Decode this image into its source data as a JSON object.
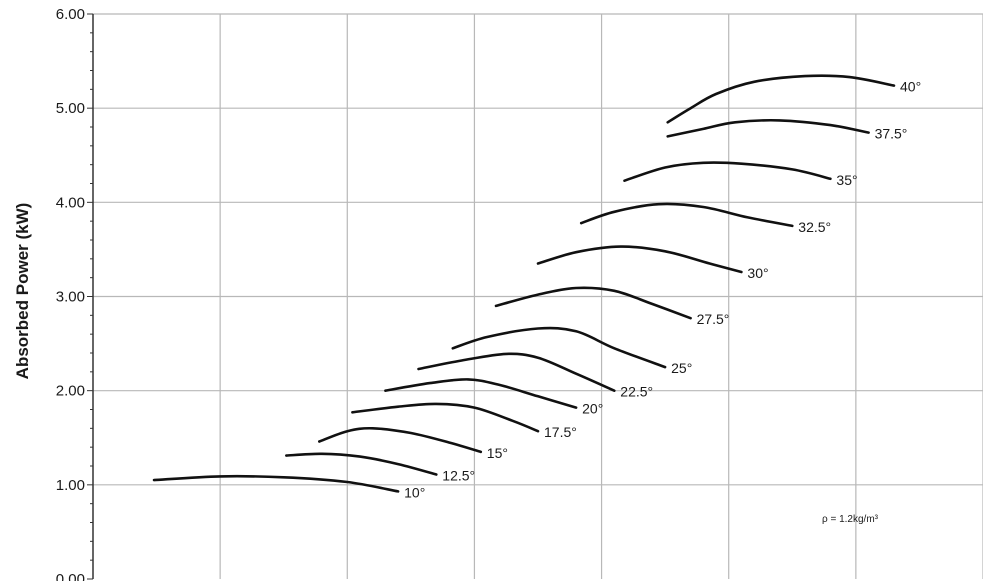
{
  "chart_data": {
    "type": "line",
    "title": "",
    "xlabel": "",
    "ylabel": "Absorbed Power (kW)",
    "ylim": [
      0,
      6
    ],
    "xlim": [
      0,
      7
    ],
    "y_ticks": [
      "0.00",
      "1.00",
      "2.00",
      "3.00",
      "4.00",
      "5.00",
      "6.00"
    ],
    "grid": true,
    "legend": "none",
    "annotation": "ρ = 1.2kg/m³",
    "line_color": "#111111",
    "grid_color": "#b8b8b8",
    "series": [
      {
        "name": "10°",
        "points": [
          [
            0.48,
            1.05
          ],
          [
            1.0,
            1.09
          ],
          [
            1.5,
            1.08
          ],
          [
            2.0,
            1.03
          ],
          [
            2.4,
            0.93
          ]
        ]
      },
      {
        "name": "12.5°",
        "points": [
          [
            1.52,
            1.31
          ],
          [
            1.8,
            1.33
          ],
          [
            2.1,
            1.3
          ],
          [
            2.4,
            1.22
          ],
          [
            2.7,
            1.11
          ]
        ]
      },
      {
        "name": "15°",
        "points": [
          [
            1.78,
            1.46
          ],
          [
            2.0,
            1.57
          ],
          [
            2.2,
            1.6
          ],
          [
            2.5,
            1.55
          ],
          [
            2.8,
            1.45
          ],
          [
            3.05,
            1.35
          ]
        ]
      },
      {
        "name": "17.5°",
        "points": [
          [
            2.04,
            1.77
          ],
          [
            2.4,
            1.83
          ],
          [
            2.7,
            1.86
          ],
          [
            3.0,
            1.82
          ],
          [
            3.3,
            1.68
          ],
          [
            3.5,
            1.57
          ]
        ]
      },
      {
        "name": "20°",
        "points": [
          [
            2.3,
            2.0
          ],
          [
            2.65,
            2.08
          ],
          [
            2.95,
            2.12
          ],
          [
            3.2,
            2.06
          ],
          [
            3.5,
            1.94
          ],
          [
            3.8,
            1.82
          ]
        ]
      },
      {
        "name": "22.5°",
        "points": [
          [
            2.56,
            2.23
          ],
          [
            2.9,
            2.32
          ],
          [
            3.25,
            2.39
          ],
          [
            3.5,
            2.35
          ],
          [
            3.8,
            2.18
          ],
          [
            4.1,
            2.0
          ]
        ]
      },
      {
        "name": "25°",
        "points": [
          [
            2.83,
            2.45
          ],
          [
            3.1,
            2.57
          ],
          [
            3.5,
            2.66
          ],
          [
            3.8,
            2.63
          ],
          [
            4.1,
            2.45
          ],
          [
            4.5,
            2.25
          ]
        ]
      },
      {
        "name": "27.5°",
        "points": [
          [
            3.17,
            2.9
          ],
          [
            3.5,
            3.02
          ],
          [
            3.8,
            3.09
          ],
          [
            4.1,
            3.06
          ],
          [
            4.4,
            2.92
          ],
          [
            4.7,
            2.77
          ]
        ]
      },
      {
        "name": "30°",
        "points": [
          [
            3.5,
            3.35
          ],
          [
            3.8,
            3.47
          ],
          [
            4.15,
            3.53
          ],
          [
            4.5,
            3.48
          ],
          [
            4.85,
            3.35
          ],
          [
            5.1,
            3.26
          ]
        ]
      },
      {
        "name": "32.5°",
        "points": [
          [
            3.84,
            3.78
          ],
          [
            4.1,
            3.9
          ],
          [
            4.45,
            3.98
          ],
          [
            4.8,
            3.95
          ],
          [
            5.15,
            3.84
          ],
          [
            5.5,
            3.75
          ]
        ]
      },
      {
        "name": "35°",
        "points": [
          [
            4.18,
            4.23
          ],
          [
            4.5,
            4.37
          ],
          [
            4.8,
            4.42
          ],
          [
            5.1,
            4.41
          ],
          [
            5.5,
            4.35
          ],
          [
            5.8,
            4.25
          ]
        ]
      },
      {
        "name": "37.5°",
        "points": [
          [
            4.52,
            4.7
          ],
          [
            4.8,
            4.78
          ],
          [
            5.05,
            4.85
          ],
          [
            5.4,
            4.87
          ],
          [
            5.8,
            4.82
          ],
          [
            6.1,
            4.74
          ]
        ]
      },
      {
        "name": "40°",
        "points": [
          [
            4.52,
            4.85
          ],
          [
            4.7,
            5.0
          ],
          [
            4.9,
            5.15
          ],
          [
            5.2,
            5.28
          ],
          [
            5.6,
            5.34
          ],
          [
            5.95,
            5.33
          ],
          [
            6.3,
            5.24
          ]
        ]
      }
    ]
  }
}
